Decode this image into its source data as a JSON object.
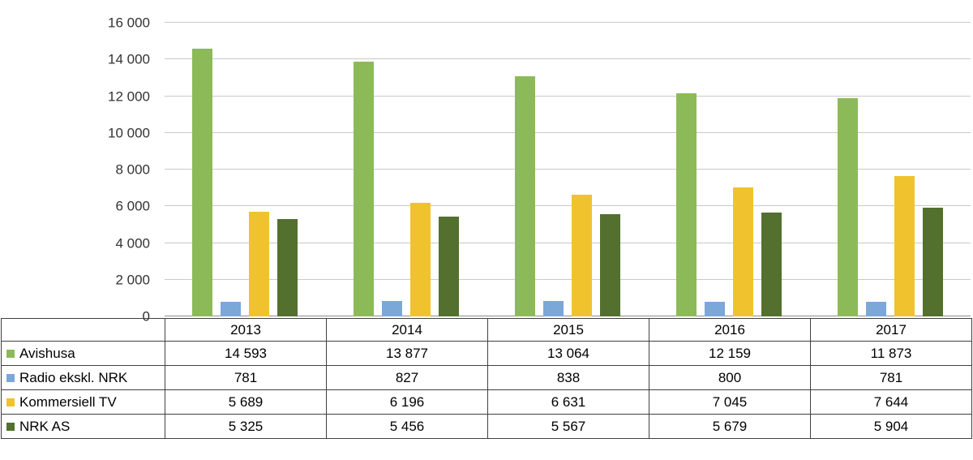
{
  "chart_data": {
    "type": "bar",
    "title": "",
    "categories": [
      "2013",
      "2014",
      "2015",
      "2016",
      "2017"
    ],
    "series": [
      {
        "name": "Avishusa",
        "color": "#8cba59",
        "values": [
          14593,
          13877,
          13064,
          12159,
          11873
        ],
        "display_values": [
          "14 593",
          "13 877",
          "13 064",
          "12 159",
          "11 873"
        ]
      },
      {
        "name": "Radio ekskl. NRK",
        "color": "#7ba7d9",
        "values": [
          781,
          827,
          838,
          800,
          781
        ],
        "display_values": [
          "781",
          "827",
          "838",
          "800",
          "781"
        ]
      },
      {
        "name": "Kommersiell TV",
        "color": "#f0c32e",
        "values": [
          5689,
          6196,
          6631,
          7045,
          7644
        ],
        "display_values": [
          "5 689",
          "6 196",
          "6 631",
          "7 045",
          "7 644"
        ]
      },
      {
        "name": "NRK AS",
        "color": "#53702e",
        "values": [
          5325,
          5456,
          5567,
          5679,
          5904
        ],
        "display_values": [
          "5 325",
          "5 456",
          "5 567",
          "5 679",
          "5 904"
        ]
      }
    ],
    "ylim": [
      0,
      16000
    ],
    "ytick_step": 2000,
    "ytick_labels": [
      "0",
      "2 000",
      "4 000",
      "6 000",
      "8 000",
      "10 000",
      "12 000",
      "14 000",
      "16 000"
    ],
    "grid": true,
    "legend_position": "table-left-column"
  }
}
